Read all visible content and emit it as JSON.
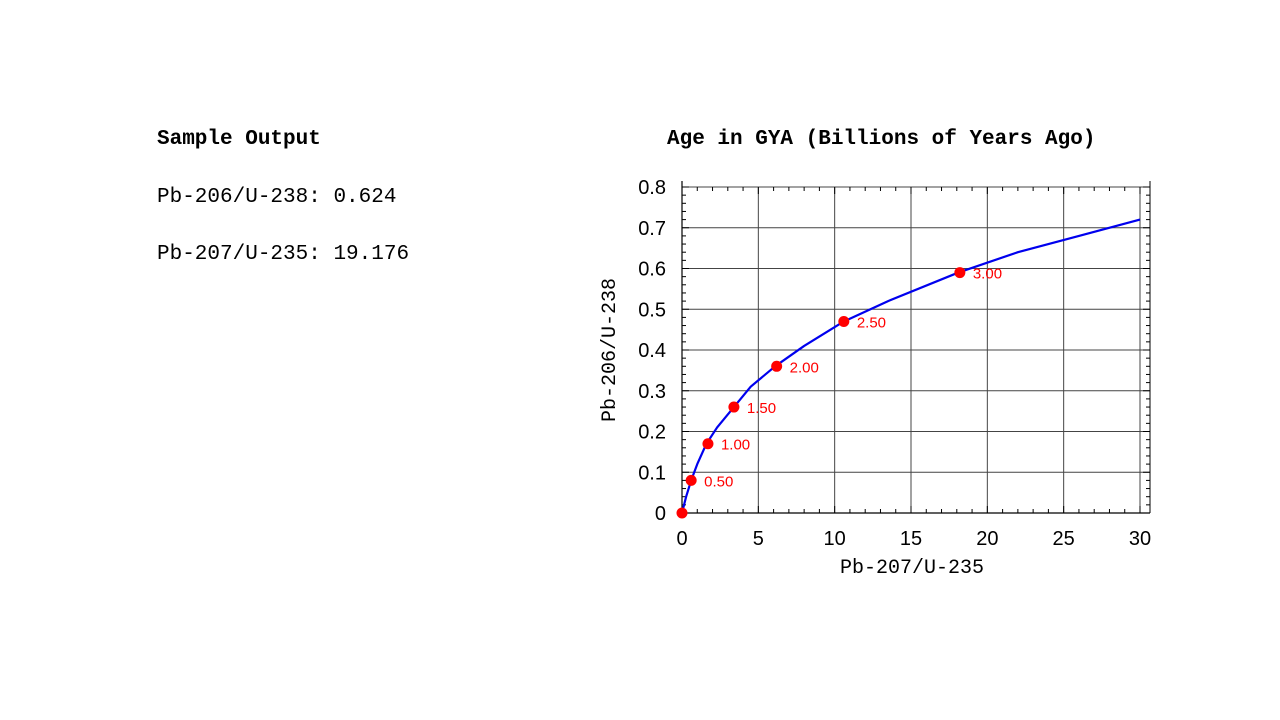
{
  "sample": {
    "heading": "Sample Output",
    "lines": [
      {
        "label": "Pb-206/U-238:",
        "value": "0.624"
      },
      {
        "label": "Pb-207/U-235:",
        "value": "19.176"
      }
    ]
  },
  "chart_data": {
    "type": "line",
    "title": "Age in GYA (Billions of Years Ago)",
    "xlabel": "Pb-207/U-235",
    "ylabel": "Pb-206/U-238",
    "xlim": [
      0,
      30
    ],
    "ylim": [
      0,
      0.8
    ],
    "xticks": [
      0,
      5,
      10,
      15,
      20,
      25,
      30
    ],
    "yticks": [
      0,
      0.1,
      0.2,
      0.3,
      0.4,
      0.5,
      0.6,
      0.7,
      0.8
    ],
    "ytick_labels": [
      "0",
      "0.1",
      "0.2",
      "0.3",
      "0.4",
      "0.5",
      "0.6",
      "0.7",
      "0.8"
    ],
    "grid": true,
    "curve_color": "#0000ee",
    "marker_color": "#ff0000",
    "curve": {
      "x": [
        0,
        0.27,
        0.6,
        1.0,
        1.6,
        2.3,
        3.4,
        4.5,
        6.1,
        8.0,
        10.6,
        13.5,
        18.1,
        22.0,
        26.0,
        30.0
      ],
      "y": [
        0,
        0.04,
        0.08,
        0.12,
        0.17,
        0.21,
        0.26,
        0.31,
        0.36,
        0.41,
        0.47,
        0.52,
        0.59,
        0.64,
        0.68,
        0.72
      ]
    },
    "points": [
      {
        "x": 0,
        "y": 0,
        "label": ""
      },
      {
        "x": 0.6,
        "y": 0.08,
        "label": "0.50"
      },
      {
        "x": 1.7,
        "y": 0.17,
        "label": "1.00"
      },
      {
        "x": 3.4,
        "y": 0.26,
        "label": "1.50"
      },
      {
        "x": 6.2,
        "y": 0.36,
        "label": "2.00"
      },
      {
        "x": 10.6,
        "y": 0.47,
        "label": "2.50"
      },
      {
        "x": 18.2,
        "y": 0.59,
        "label": "3.00"
      }
    ]
  }
}
